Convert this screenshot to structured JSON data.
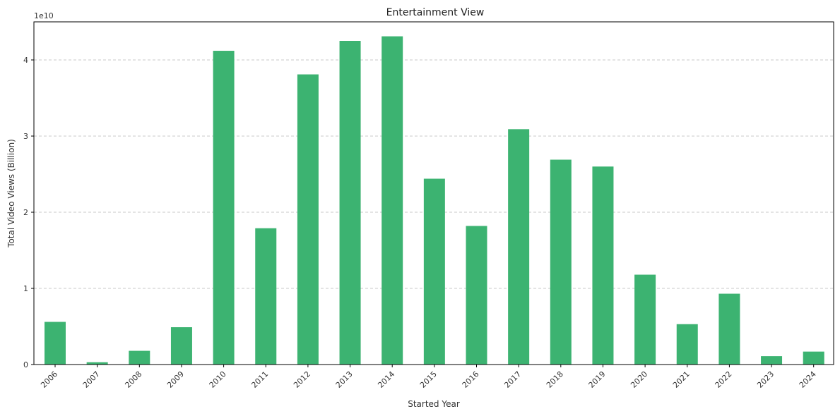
{
  "chart_data": {
    "type": "bar",
    "title": "Entertainment View",
    "xlabel": "Started Year",
    "ylabel": "Total Video Views (Billion)",
    "y_offset_label": "1e10",
    "ylim": [
      0,
      4.5
    ],
    "yticks": [
      0,
      1,
      2,
      3,
      4
    ],
    "grid": "horizontal-dashed",
    "bar_color": "#3cb371",
    "categories": [
      "2006",
      "2007",
      "2008",
      "2009",
      "2010",
      "2011",
      "2012",
      "2013",
      "2014",
      "2015",
      "2016",
      "2017",
      "2018",
      "2019",
      "2020",
      "2021",
      "2022",
      "2023",
      "2024"
    ],
    "values": [
      0.56,
      0.03,
      0.18,
      0.49,
      4.12,
      1.79,
      3.81,
      4.25,
      4.31,
      2.44,
      1.82,
      3.09,
      2.69,
      2.6,
      1.18,
      0.53,
      0.93,
      0.11,
      0.17
    ]
  }
}
